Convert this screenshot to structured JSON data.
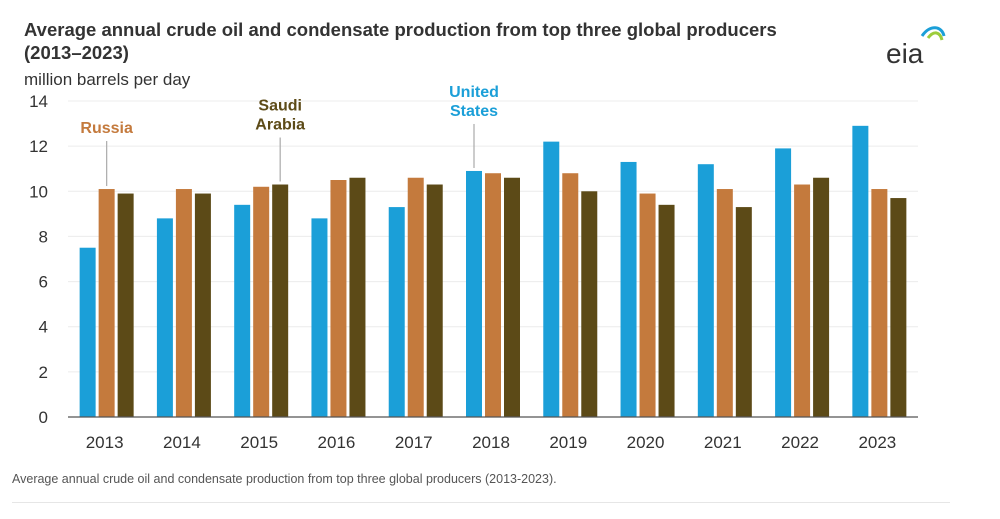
{
  "title_line1": "Average annual crude oil and condensate production from top three global producers",
  "title_line2": "(2013–2023)",
  "logo_text": "eia",
  "caption": "Average annual crude oil and condensate production from top three global producers (2013-2023).",
  "colors": {
    "united_states": "#1B9FD8",
    "russia": "#C47A3D",
    "saudi_arabia": "#5C4A17",
    "axis": "#333333",
    "grid": "#ececec"
  },
  "chart_data": {
    "type": "bar",
    "title": "Average annual crude oil and condensate production from top three global producers (2013–2023)",
    "ylabel": "million barrels per day",
    "xlabel": "",
    "ylim": [
      0,
      14
    ],
    "yticks": [
      0,
      2,
      4,
      6,
      8,
      10,
      12,
      14
    ],
    "categories": [
      "2013",
      "2014",
      "2015",
      "2016",
      "2017",
      "2018",
      "2019",
      "2020",
      "2021",
      "2022",
      "2023"
    ],
    "series": [
      {
        "name": "United States",
        "color_key": "united_states",
        "values": [
          7.5,
          8.8,
          9.4,
          8.8,
          9.3,
          10.9,
          12.2,
          11.3,
          11.2,
          11.9,
          12.9
        ]
      },
      {
        "name": "Russia",
        "color_key": "russia",
        "values": [
          10.1,
          10.1,
          10.2,
          10.5,
          10.6,
          10.8,
          10.8,
          9.9,
          10.1,
          10.3,
          10.1
        ]
      },
      {
        "name": "Saudi Arabia",
        "color_key": "saudi_arabia",
        "values": [
          9.9,
          9.9,
          10.3,
          10.6,
          10.3,
          10.6,
          10.0,
          9.4,
          9.3,
          10.6,
          9.7
        ]
      }
    ],
    "annotations": [
      {
        "text": [
          "Russia"
        ],
        "series": "Russia",
        "category": "2013"
      },
      {
        "text": [
          "Saudi",
          "Arabia"
        ],
        "series": "Saudi Arabia",
        "category": "2015"
      },
      {
        "text": [
          "United",
          "States"
        ],
        "series": "United States",
        "category": "2018"
      }
    ],
    "grid": true,
    "legend": "none (direct labels)"
  }
}
